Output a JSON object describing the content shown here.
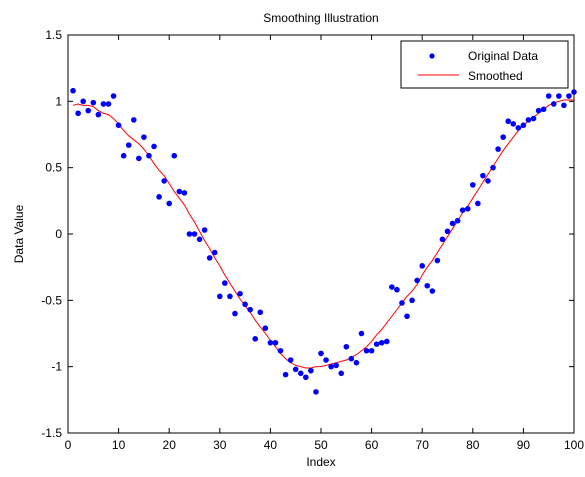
{
  "chart_data": {
    "type": "scatter",
    "title": "Smoothing Illustration",
    "xlabel": "Index",
    "ylabel": "Data Value",
    "xlim": [
      0,
      100
    ],
    "ylim": [
      -1.5,
      1.5
    ],
    "xticks": [
      0,
      10,
      20,
      30,
      40,
      50,
      60,
      70,
      80,
      90,
      100
    ],
    "yticks": [
      -1.5,
      -1,
      -0.5,
      0,
      0.5,
      1,
      1.5
    ],
    "xtick_labels": [
      "0",
      "10",
      "20",
      "30",
      "40",
      "50",
      "60",
      "70",
      "80",
      "90",
      "100"
    ],
    "ytick_labels": [
      "-1.5",
      "-1",
      "-0.5",
      "0",
      "0.5",
      "1",
      "1.5"
    ],
    "grid": false,
    "legend_position": "top-right",
    "series": [
      {
        "name": "Original Data",
        "kind": "scatter",
        "color": "#0000ff",
        "x": [
          1,
          2,
          3,
          4,
          5,
          6,
          7,
          8,
          9,
          10,
          11,
          12,
          13,
          14,
          15,
          16,
          17,
          18,
          19,
          20,
          21,
          22,
          23,
          24,
          25,
          26,
          27,
          28,
          29,
          30,
          31,
          32,
          33,
          34,
          35,
          36,
          37,
          38,
          39,
          40,
          41,
          42,
          43,
          44,
          45,
          46,
          47,
          48,
          49,
          50,
          51,
          52,
          53,
          54,
          55,
          56,
          57,
          58,
          59,
          60,
          61,
          62,
          63,
          64,
          65,
          66,
          67,
          68,
          69,
          70,
          71,
          72,
          73,
          74,
          75,
          76,
          77,
          78,
          79,
          80,
          81,
          82,
          83,
          84,
          85,
          86,
          87,
          88,
          89,
          90,
          91,
          92,
          93,
          94,
          95,
          96,
          97,
          98,
          99,
          100
        ],
        "y": [
          1.08,
          0.91,
          1.0,
          0.93,
          0.99,
          0.9,
          0.98,
          0.98,
          1.04,
          0.82,
          0.59,
          0.67,
          0.86,
          0.57,
          0.73,
          0.59,
          0.66,
          0.28,
          0.4,
          0.23,
          0.59,
          0.32,
          0.31,
          0.0,
          0.0,
          -0.04,
          0.03,
          -0.18,
          -0.14,
          -0.47,
          -0.37,
          -0.47,
          -0.6,
          -0.45,
          -0.53,
          -0.57,
          -0.79,
          -0.59,
          -0.71,
          -0.82,
          -0.82,
          -0.88,
          -1.06,
          -0.95,
          -1.02,
          -1.05,
          -1.08,
          -1.03,
          -1.19,
          -0.9,
          -0.95,
          -1.0,
          -0.99,
          -1.05,
          -0.85,
          -0.94,
          -0.97,
          -0.75,
          -0.88,
          -0.88,
          -0.83,
          -0.82,
          -0.81,
          -0.4,
          -0.42,
          -0.52,
          -0.62,
          -0.5,
          -0.35,
          -0.24,
          -0.39,
          -0.43,
          -0.2,
          -0.04,
          0.02,
          0.08,
          0.1,
          0.18,
          0.19,
          0.37,
          0.23,
          0.44,
          0.4,
          0.5,
          0.64,
          0.73,
          0.85,
          0.83,
          0.8,
          0.82,
          0.86,
          0.87,
          0.93,
          0.94,
          1.04,
          0.98,
          1.04,
          0.97,
          1.04,
          1.07
        ]
      },
      {
        "name": "Smoothed",
        "kind": "line",
        "color": "#ff0000",
        "x": [
          1,
          2,
          3,
          4,
          5,
          6,
          7,
          8,
          9,
          10,
          11,
          12,
          13,
          14,
          15,
          16,
          17,
          18,
          19,
          20,
          21,
          22,
          23,
          24,
          25,
          26,
          27,
          28,
          29,
          30,
          31,
          32,
          33,
          34,
          35,
          36,
          37,
          38,
          39,
          40,
          41,
          42,
          43,
          44,
          45,
          46,
          47,
          48,
          49,
          50,
          51,
          52,
          53,
          54,
          55,
          56,
          57,
          58,
          59,
          60,
          61,
          62,
          63,
          64,
          65,
          66,
          67,
          68,
          69,
          70,
          71,
          72,
          73,
          74,
          75,
          76,
          77,
          78,
          79,
          80,
          81,
          82,
          83,
          84,
          85,
          86,
          87,
          88,
          89,
          90,
          91,
          92,
          93,
          94,
          95,
          96,
          97,
          98,
          99,
          100
        ],
        "y": [
          0.97,
          0.98,
          0.97,
          0.97,
          0.96,
          0.93,
          0.91,
          0.9,
          0.87,
          0.83,
          0.78,
          0.74,
          0.71,
          0.68,
          0.64,
          0.59,
          0.53,
          0.48,
          0.44,
          0.38,
          0.32,
          0.27,
          0.22,
          0.15,
          0.09,
          0.02,
          -0.05,
          -0.11,
          -0.18,
          -0.24,
          -0.31,
          -0.37,
          -0.43,
          -0.49,
          -0.54,
          -0.59,
          -0.65,
          -0.7,
          -0.75,
          -0.8,
          -0.85,
          -0.9,
          -0.94,
          -0.97,
          -0.99,
          -1.0,
          -1.01,
          -1.01,
          -1.0,
          -1.0,
          -0.99,
          -0.98,
          -0.97,
          -0.96,
          -0.95,
          -0.93,
          -0.91,
          -0.88,
          -0.85,
          -0.81,
          -0.76,
          -0.72,
          -0.67,
          -0.62,
          -0.57,
          -0.52,
          -0.47,
          -0.43,
          -0.38,
          -0.31,
          -0.25,
          -0.2,
          -0.14,
          -0.08,
          -0.02,
          0.04,
          0.1,
          0.16,
          0.21,
          0.27,
          0.33,
          0.39,
          0.45,
          0.51,
          0.57,
          0.63,
          0.68,
          0.73,
          0.78,
          0.82,
          0.85,
          0.88,
          0.91,
          0.94,
          0.97,
          0.99,
          1.0,
          1.01,
          1.01,
          1.01
        ]
      }
    ]
  }
}
